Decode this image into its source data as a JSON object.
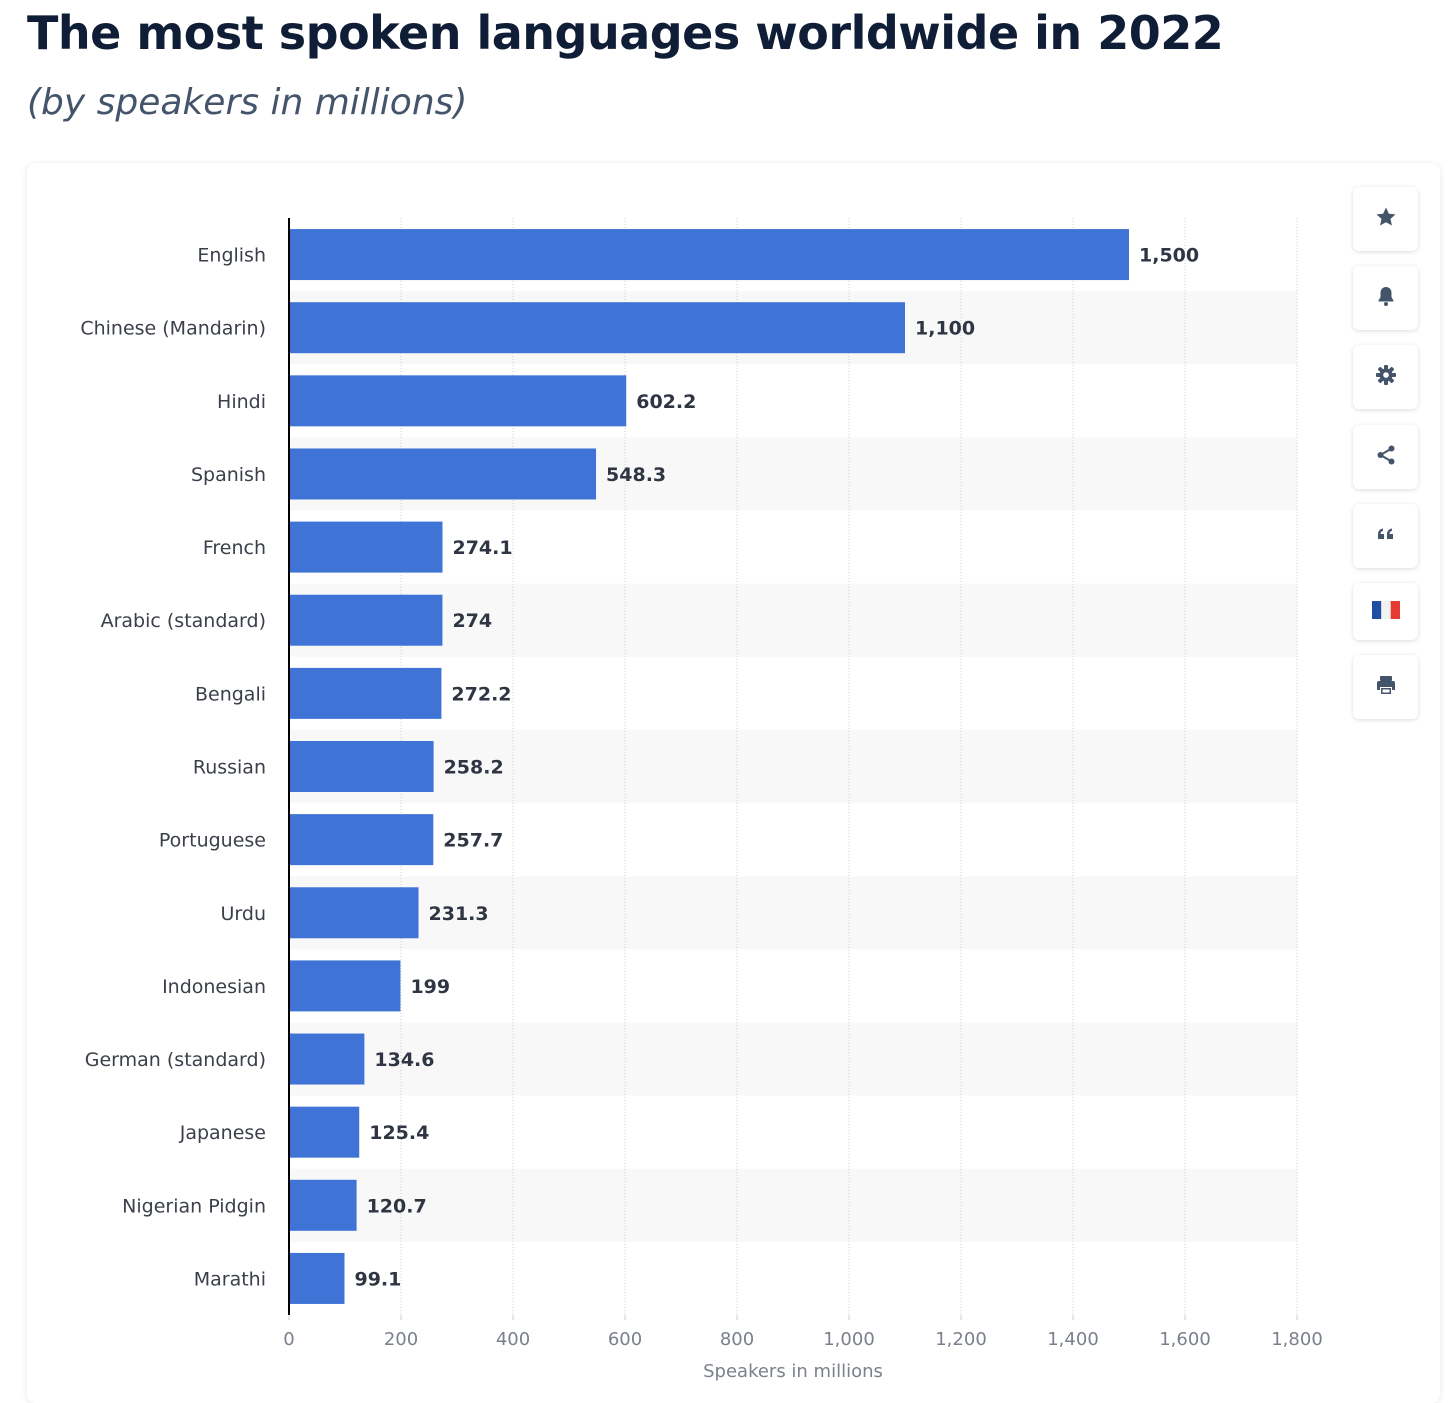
{
  "header": {
    "title": "The most spoken languages worldwide in 2022",
    "subtitle": "(by speakers in millions)"
  },
  "colors": {
    "bar": "#3f74d6",
    "band": "#f8f8f8",
    "icon": "#44546a"
  },
  "toolbar": {
    "buttons": [
      {
        "name": "favorite-button",
        "icon": "star-icon"
      },
      {
        "name": "notification-button",
        "icon": "bell-icon"
      },
      {
        "name": "settings-button",
        "icon": "gear-icon"
      },
      {
        "name": "share-button",
        "icon": "share-icon"
      },
      {
        "name": "cite-button",
        "icon": "quote-icon"
      },
      {
        "name": "language-button",
        "icon": "french-flag-icon"
      },
      {
        "name": "print-button",
        "icon": "printer-icon"
      }
    ]
  },
  "chart_data": {
    "type": "bar",
    "orientation": "horizontal",
    "categories": [
      "English",
      "Chinese (Mandarin)",
      "Hindi",
      "Spanish",
      "French",
      "Arabic (standard)",
      "Bengali",
      "Russian",
      "Portuguese",
      "Urdu",
      "Indonesian",
      "German (standard)",
      "Japanese",
      "Nigerian Pidgin",
      "Marathi"
    ],
    "values": [
      1500,
      1100,
      602.2,
      548.3,
      274.1,
      274,
      272.2,
      258.2,
      257.7,
      231.3,
      199,
      134.6,
      125.4,
      120.7,
      99.1
    ],
    "value_labels": [
      "1,500",
      "1,100",
      "602.2",
      "548.3",
      "274.1",
      "274",
      "272.2",
      "258.2",
      "257.7",
      "231.3",
      "199",
      "134.6",
      "125.4",
      "120.7",
      "99.1"
    ],
    "xlabel": "Speakers in millions",
    "ylabel": "",
    "xlim": [
      0,
      1800
    ],
    "xticks": [
      0,
      200,
      400,
      600,
      800,
      1000,
      1200,
      1400,
      1600,
      1800
    ],
    "xtick_labels": [
      "0",
      "200",
      "400",
      "600",
      "800",
      "1,000",
      "1,200",
      "1,400",
      "1,600",
      "1,800"
    ],
    "grid": true,
    "legend": "none"
  }
}
